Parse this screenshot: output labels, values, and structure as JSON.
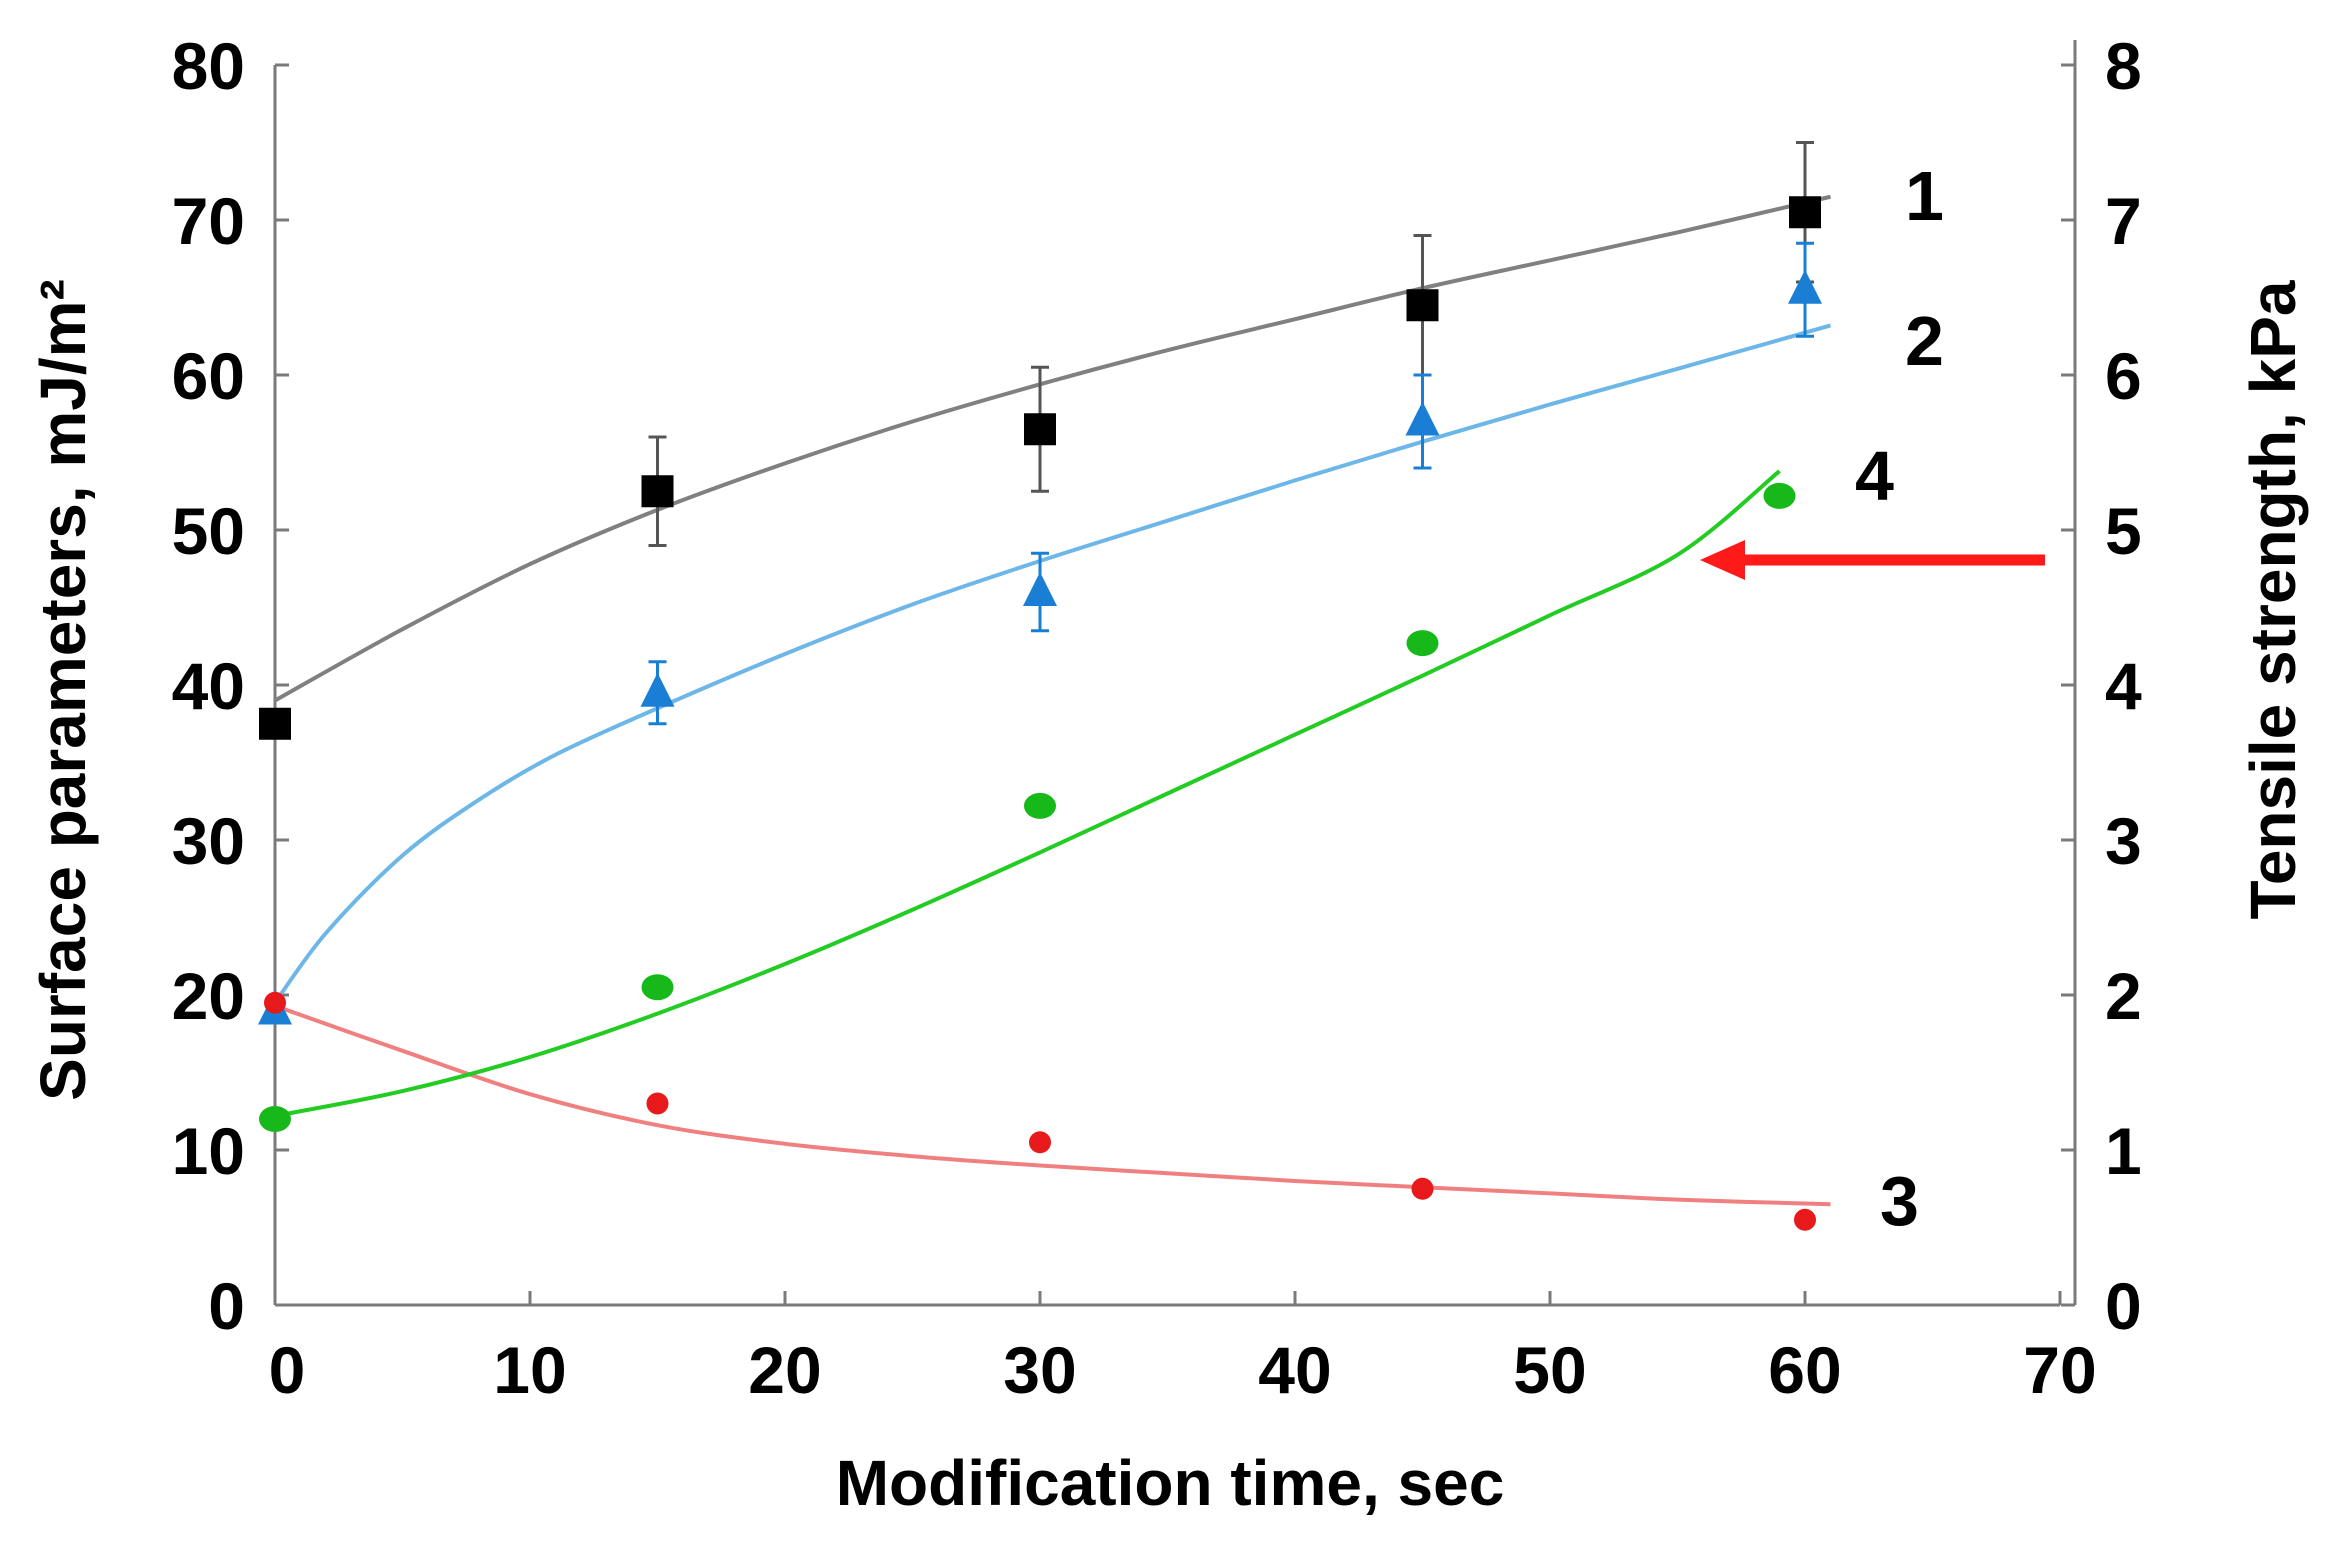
{
  "chart_data": {
    "type": "scatter",
    "title": "",
    "xlabel": "Modification time, sec",
    "ylabel_left": "Surface parameters, mJ/m²",
    "ylabel_right": "Tensile strength, kPa",
    "xlim": [
      0,
      70
    ],
    "ylim_left": [
      0,
      80
    ],
    "ylim_right": [
      0,
      8
    ],
    "x_ticks": [
      "0",
      "10",
      "20",
      "30",
      "40",
      "50",
      "60",
      "70"
    ],
    "y_left_ticks": [
      "0",
      "10",
      "20",
      "30",
      "40",
      "50",
      "60",
      "70",
      "80"
    ],
    "y_right_ticks": [
      "0",
      "1",
      "2",
      "3",
      "4",
      "5",
      "6",
      "7",
      "8"
    ],
    "grid": false,
    "series": [
      {
        "name": "1",
        "axis": "left",
        "marker": "square",
        "color": "#000000",
        "fit_color": "#808080",
        "x": [
          0,
          15,
          30,
          45,
          60
        ],
        "y": [
          37.5,
          52.5,
          56.5,
          64.5,
          70.5
        ],
        "err": [
          0,
          3.5,
          4,
          4.5,
          4.5
        ],
        "fit": {
          "x": [
            0,
            5,
            10,
            15,
            20,
            25,
            30,
            35,
            40,
            45,
            50,
            55,
            61
          ],
          "y": [
            39,
            43.6,
            47.8,
            51.3,
            54.3,
            57,
            59.4,
            61.6,
            63.6,
            65.6,
            67.4,
            69.2,
            71.5
          ]
        }
      },
      {
        "name": "2",
        "axis": "left",
        "marker": "triangle",
        "color": "#1a7fd4",
        "fit_color": "#6cb6e8",
        "x": [
          0,
          15,
          30,
          45,
          60
        ],
        "y": [
          19,
          39.5,
          46,
          57,
          65.5
        ],
        "err": [
          0,
          2,
          2.5,
          3,
          3
        ],
        "fit": {
          "x": [
            0,
            2,
            5,
            8,
            11,
            15,
            20,
            25,
            30,
            35,
            40,
            45,
            50,
            55,
            61
          ],
          "y": [
            19.5,
            24,
            29,
            32.6,
            35.5,
            38.5,
            42,
            45.2,
            48,
            50.6,
            53.2,
            55.7,
            58.1,
            60.4,
            63.2
          ]
        }
      },
      {
        "name": "3",
        "axis": "left",
        "marker": "circle",
        "color": "#e8191b",
        "fit_color": "#f08080",
        "x": [
          0,
          15,
          30,
          45,
          60
        ],
        "y": [
          19.5,
          13,
          10.5,
          7.5,
          5.5
        ],
        "err": [
          0,
          0,
          0,
          0,
          0
        ],
        "fit": {
          "x": [
            0,
            5,
            10,
            15,
            20,
            25,
            30,
            35,
            40,
            45,
            50,
            55,
            61
          ],
          "y": [
            19.3,
            16.4,
            13.6,
            11.6,
            10.4,
            9.6,
            9,
            8.5,
            8,
            7.6,
            7.2,
            6.8,
            6.5
          ]
        }
      },
      {
        "name": "4",
        "axis": "right",
        "marker": "ellipse",
        "color": "#16b81a",
        "fit_color": "#22cc22",
        "x": [
          0,
          15,
          30,
          45,
          59
        ],
        "y": [
          1.2,
          2.05,
          3.22,
          4.27,
          5.22
        ],
        "err": [
          0,
          0,
          0,
          0,
          0
        ],
        "fit": {
          "x": [
            0,
            5,
            10,
            15,
            20,
            25,
            30,
            35,
            40,
            45,
            50,
            55,
            59
          ],
          "y": [
            1.22,
            1.38,
            1.6,
            1.88,
            2.2,
            2.55,
            2.92,
            3.3,
            3.68,
            4.06,
            4.45,
            4.84,
            5.38
          ]
        }
      }
    ],
    "annotations": [
      {
        "type": "arrow",
        "color": "#ff1a1a",
        "direction": "left",
        "points_to_series": "4"
      }
    ]
  }
}
